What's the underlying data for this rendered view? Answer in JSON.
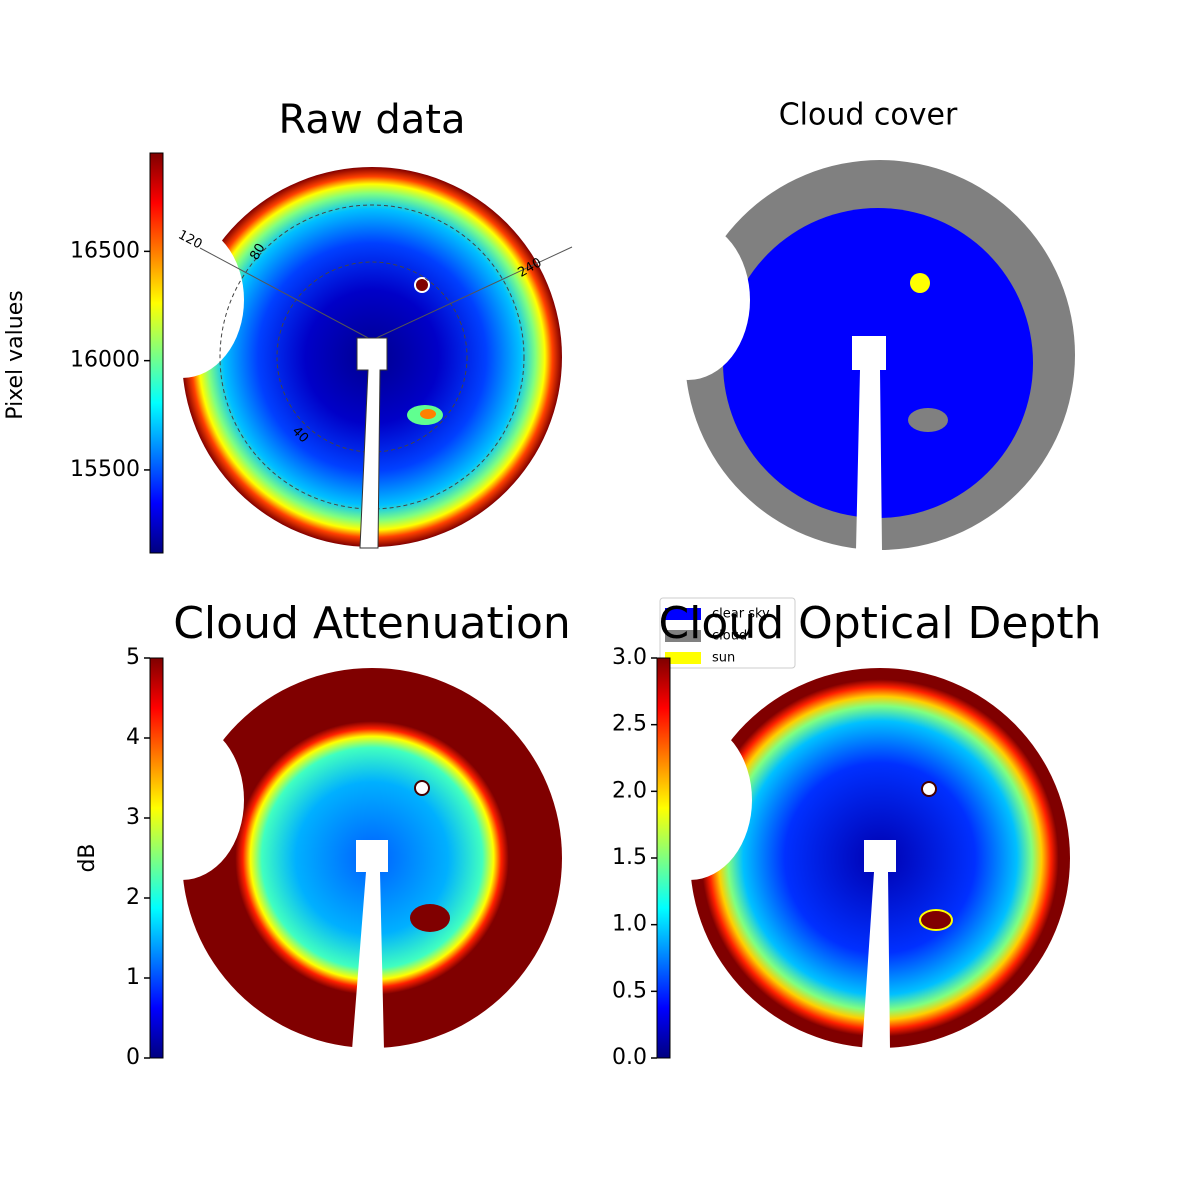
{
  "chart_data": [
    {
      "type": "image",
      "title": "Raw data",
      "colorbar_label": "Pixel values",
      "cmap": "jet",
      "clim": [
        15120,
        16950
      ],
      "cticks": [
        15500,
        16000,
        16500
      ],
      "annotations": [
        "120",
        "80",
        "240",
        "40"
      ]
    },
    {
      "type": "classification",
      "title": "Cloud cover",
      "series": [
        {
          "name": "clear sky",
          "color": "#0000ff"
        },
        {
          "name": "cloud",
          "color": "#808080"
        },
        {
          "name": "sun",
          "color": "#ffff00"
        }
      ]
    },
    {
      "type": "image",
      "title": "Cloud Attenuation",
      "colorbar_label": "dB",
      "cmap": "jet",
      "clim": [
        0,
        5
      ],
      "cticks": [
        0,
        1,
        2,
        3,
        4,
        5
      ]
    },
    {
      "type": "image",
      "title": "Cloud Optical Depth",
      "cmap": "jet",
      "clim": [
        0,
        3
      ],
      "cticks": [
        {
          "value": 0,
          "label": "0.0"
        },
        0.5,
        {
          "value": 1,
          "label": "1.0"
        },
        1.5,
        {
          "value": 2,
          "label": "2.0"
        },
        2.5,
        {
          "value": 3,
          "label": "3.0"
        }
      ]
    }
  ]
}
